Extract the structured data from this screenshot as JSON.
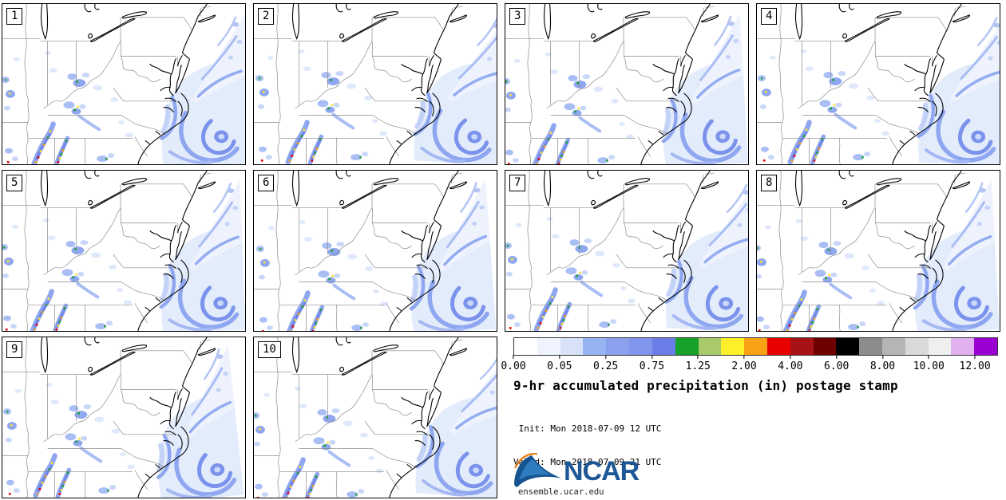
{
  "panels": [
    {
      "label": "1"
    },
    {
      "label": "2"
    },
    {
      "label": "3"
    },
    {
      "label": "4"
    },
    {
      "label": "5"
    },
    {
      "label": "6"
    },
    {
      "label": "7"
    },
    {
      "label": "8"
    },
    {
      "label": "9"
    },
    {
      "label": "10"
    }
  ],
  "legend": {
    "title": "9-hr accumulated precipitation (in) postage stamp",
    "init_line": " Init: Mon 2018-07-09 12 UTC",
    "valid_line": "Valid: Mon 2018-07-09 21 UTC",
    "logo_text": "NCAR",
    "logo_url": "ensemble.ucar.edu",
    "colorbar": {
      "tick_labels": [
        "0.00",
        "0.05",
        "0.25",
        "0.75",
        "1.25",
        "2.00",
        "4.00",
        "6.00",
        "8.00",
        "10.00",
        "12.00"
      ],
      "segment_colors": [
        "#ffffff",
        "#eef3fd",
        "#d7e2f9",
        "#96b4f2",
        "#8ba1ee",
        "#8096ec",
        "#6b7de8",
        "#16a12b",
        "#a9ca69",
        "#fdf02a",
        "#f7a113",
        "#e80000",
        "#a81216",
        "#6f0000",
        "#000000",
        "#8c8c8c",
        "#b5b5b5",
        "#d9d9d9",
        "#efefef",
        "#e0b0f0",
        "#9b00d3"
      ]
    }
  },
  "colors": {
    "logo_blue": "#1d5796",
    "logo_orange": "#e8821e",
    "precip_light": "#e3ecfb",
    "precip_medium": "#8fa7f0",
    "precip_strong": "#7085e8",
    "state_border": "#8a8a8a"
  },
  "chart_data": {
    "type": "heatmap",
    "title": "9-hr accumulated precipitation (in) postage stamp",
    "units": "in",
    "ensemble_members": 10,
    "init": "Mon 2018-07-09 12 UTC",
    "valid": "Mon 2018-07-09 21 UTC",
    "colorbar_tick_values": [
      0.0,
      0.05,
      0.25,
      0.75,
      1.25,
      2.0,
      4.0,
      6.0,
      8.0,
      10.0,
      12.0
    ],
    "legend_position": "bottom-right"
  }
}
